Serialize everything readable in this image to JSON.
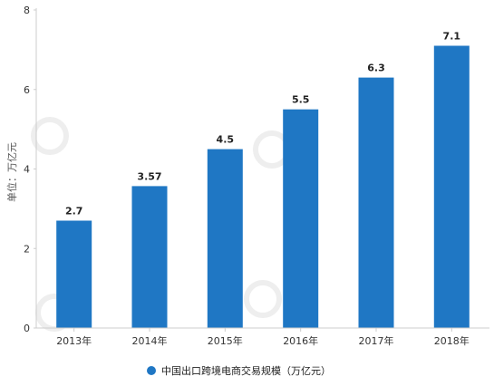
{
  "chart_data": {
    "type": "bar",
    "categories": [
      "2013年",
      "2014年",
      "2015年",
      "2016年",
      "2017年",
      "2018年"
    ],
    "series": [
      {
        "name": "中国出口跨境电商交易规模（万亿元）",
        "values": [
          2.7,
          3.57,
          4.5,
          5.5,
          6.3,
          7.1
        ],
        "value_labels": [
          "2.7",
          "3.57",
          "4.5",
          "5.5",
          "6.3",
          "7.1"
        ],
        "color": "#1f77c4"
      }
    ],
    "title": "",
    "xlabel": "",
    "ylabel": "单位：万亿元",
    "ylim": [
      0,
      8
    ],
    "yticks": [
      0,
      2,
      4,
      6,
      8
    ],
    "grid": false,
    "legend_position": "bottom-center"
  }
}
